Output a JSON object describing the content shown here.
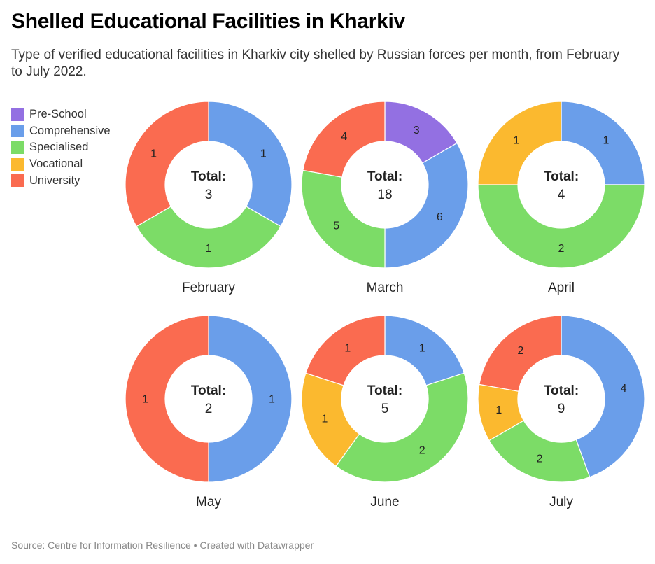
{
  "title": "Shelled Educational Facilities in Kharkiv",
  "subtitle": "Type of verified educational facilities in Kharkiv city shelled by Russian forces per month, from February to July 2022.",
  "footer": "Source: Centre for Information Resilience • Created with Datawrapper",
  "total_word": "Total:",
  "legend": [
    {
      "name": "Pre-School",
      "color": "#9370e2"
    },
    {
      "name": "Comprehensive",
      "color": "#6a9eea"
    },
    {
      "name": "Specialised",
      "color": "#7cdc67"
    },
    {
      "name": "Vocational",
      "color": "#fbb92f"
    },
    {
      "name": "University",
      "color": "#fa6b50"
    }
  ],
  "chart_data": [
    {
      "type": "pie",
      "month": "February",
      "total": 3,
      "categories": [
        "Pre-School",
        "Comprehensive",
        "Specialised",
        "Vocational",
        "University"
      ],
      "values": [
        0,
        1,
        1,
        0,
        1
      ]
    },
    {
      "type": "pie",
      "month": "March",
      "total": 18,
      "categories": [
        "Pre-School",
        "Comprehensive",
        "Specialised",
        "Vocational",
        "University"
      ],
      "values": [
        3,
        6,
        5,
        0,
        4
      ]
    },
    {
      "type": "pie",
      "month": "April",
      "total": 4,
      "categories": [
        "Pre-School",
        "Comprehensive",
        "Specialised",
        "Vocational",
        "University"
      ],
      "values": [
        0,
        1,
        2,
        1,
        0
      ]
    },
    {
      "type": "pie",
      "month": "May",
      "total": 2,
      "categories": [
        "Pre-School",
        "Comprehensive",
        "Specialised",
        "Vocational",
        "University"
      ],
      "values": [
        0,
        1,
        0,
        0,
        1
      ]
    },
    {
      "type": "pie",
      "month": "June",
      "total": 5,
      "categories": [
        "Pre-School",
        "Comprehensive",
        "Specialised",
        "Vocational",
        "University"
      ],
      "values": [
        0,
        1,
        2,
        1,
        1
      ]
    },
    {
      "type": "pie",
      "month": "July",
      "total": 9,
      "categories": [
        "Pre-School",
        "Comprehensive",
        "Specialised",
        "Vocational",
        "University"
      ],
      "values": [
        0,
        4,
        2,
        1,
        2
      ]
    }
  ]
}
